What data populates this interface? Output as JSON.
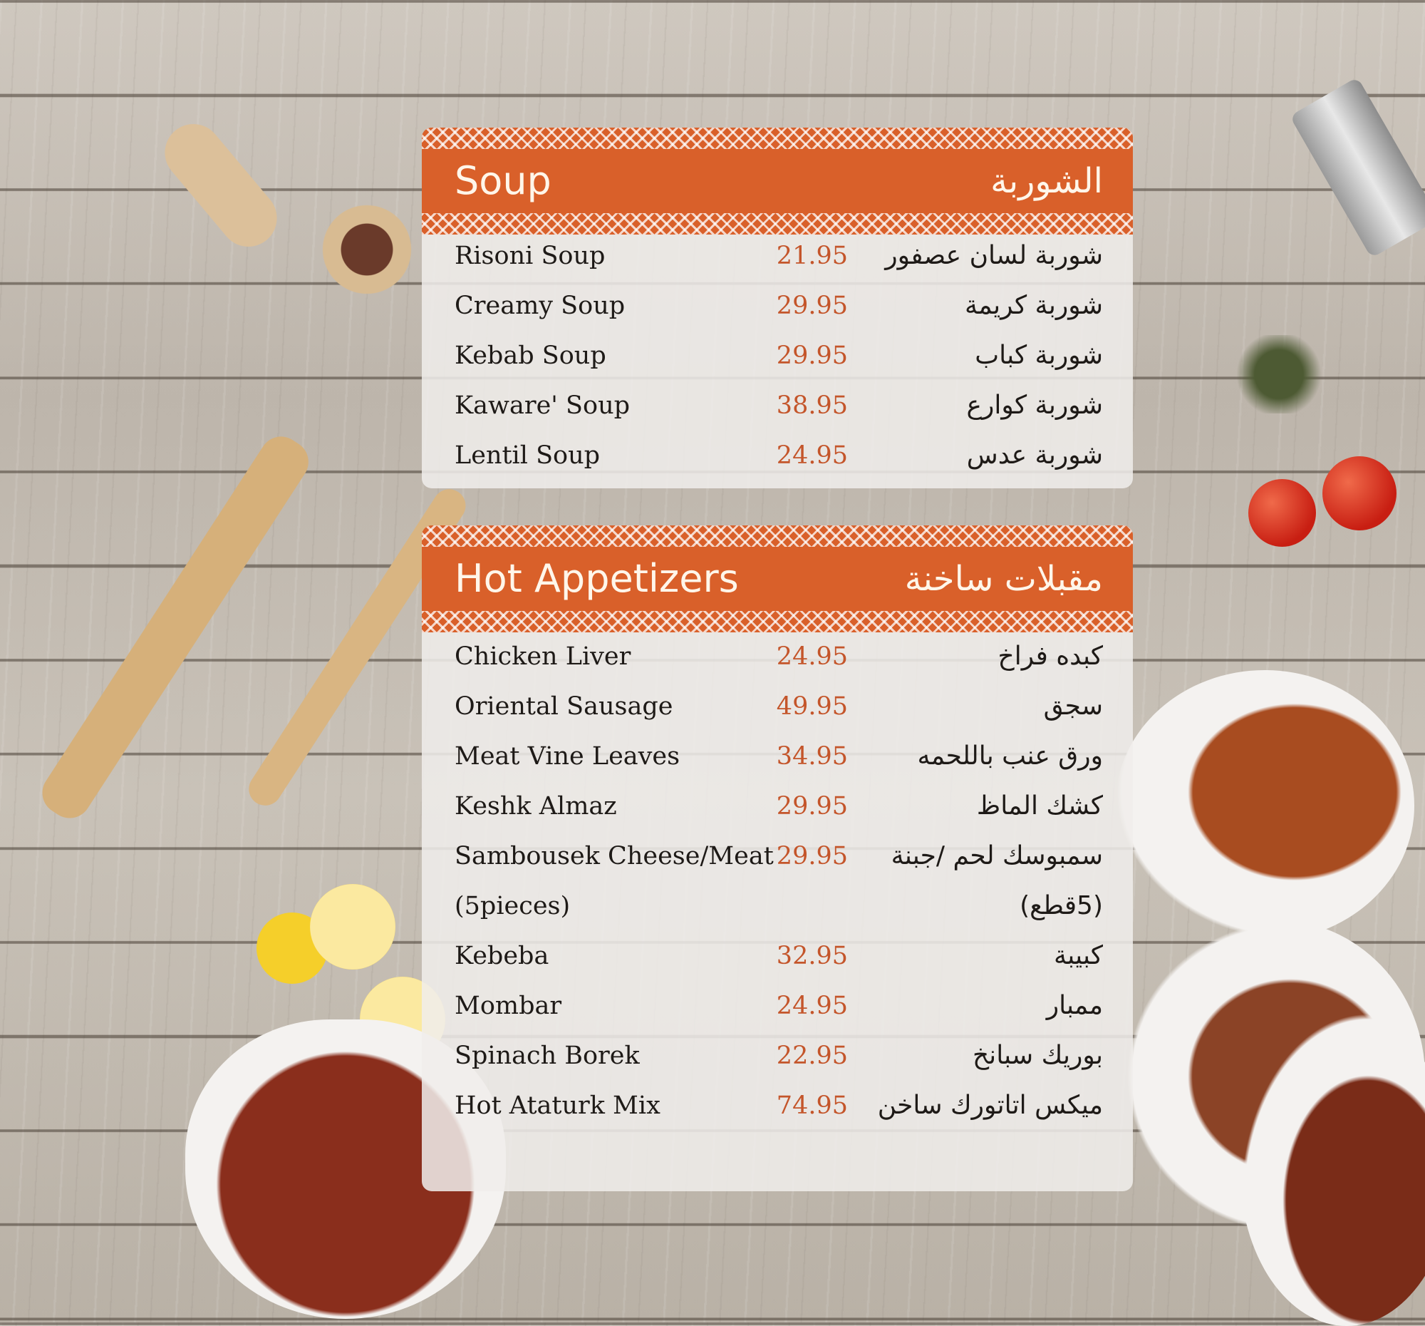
{
  "colors": {
    "accent": "#d9602a",
    "price": "#c4552a",
    "panel": "#f0eeeb"
  },
  "sections": [
    {
      "title_en": "Soup",
      "title_ar": "الشوربة",
      "items": [
        {
          "en": "Risoni Soup",
          "price": "21.95",
          "ar": "شوربة لسان عصفور"
        },
        {
          "en": "Creamy Soup",
          "price": "29.95",
          "ar": "شوربة كريمة"
        },
        {
          "en": "Kebab Soup",
          "price": "29.95",
          "ar": "شوربة كباب"
        },
        {
          "en": "Kaware' Soup",
          "price": "38.95",
          "ar": "شوربة كوارع"
        },
        {
          "en": "Lentil Soup",
          "price": "24.95",
          "ar": "شوربة عدس"
        }
      ]
    },
    {
      "title_en": "Hot Appetizers",
      "title_ar": "مقبلات ساخنة",
      "items": [
        {
          "en": "Chicken Liver",
          "price": "24.95",
          "ar": "كبده فراخ"
        },
        {
          "en": "Oriental Sausage",
          "price": "49.95",
          "ar": "سجق"
        },
        {
          "en": "Meat Vine Leaves",
          "price": "34.95",
          "ar": "ورق عنب باللحمه"
        },
        {
          "en": "Keshk Almaz",
          "price": "29.95",
          "ar": "كشك الماظ"
        },
        {
          "en": "Sambousek Cheese/Meat",
          "price": "29.95",
          "ar": "سمبوسك لحم /جبنة"
        },
        {
          "en": "(5pieces)",
          "price": "",
          "ar": "(5قطع)"
        },
        {
          "en": "Kebeba",
          "price": "32.95",
          "ar": "كبيبة"
        },
        {
          "en": "Mombar",
          "price": "24.95",
          "ar": "ممبار"
        },
        {
          "en": "Spinach Borek",
          "price": "22.95",
          "ar": "بوريك سبانخ"
        },
        {
          "en": "Hot Ataturk Mix",
          "price": "74.95",
          "ar": "ميكس اتاتورك ساخن"
        }
      ]
    }
  ]
}
